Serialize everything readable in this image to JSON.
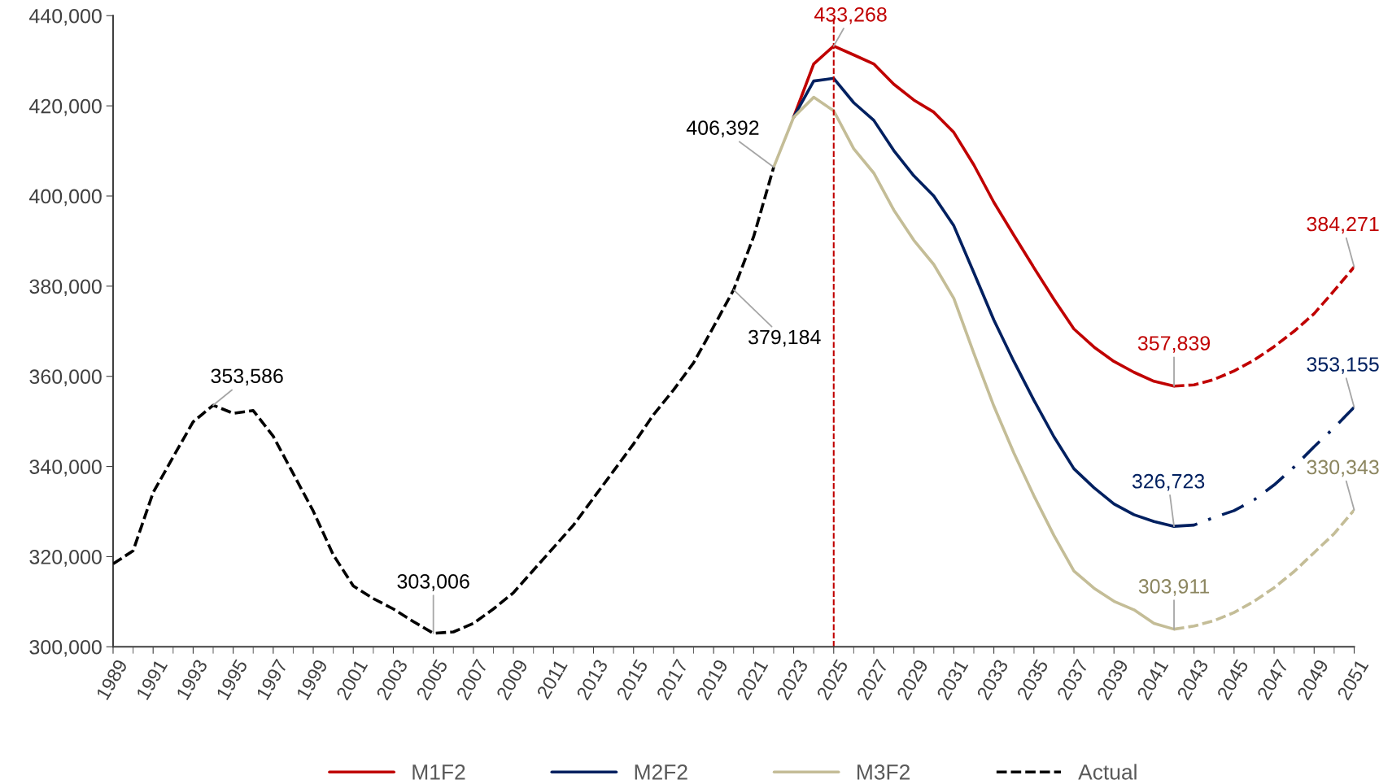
{
  "chart_data": {
    "type": "line",
    "xlim": [
      1989,
      2051
    ],
    "xticks": [
      1989,
      1991,
      1993,
      1995,
      1997,
      1999,
      2001,
      2003,
      2005,
      2007,
      2009,
      2011,
      2013,
      2015,
      2017,
      2019,
      2021,
      2023,
      2025,
      2027,
      2029,
      2031,
      2033,
      2035,
      2037,
      2039,
      2041,
      2043,
      2045,
      2047,
      2049,
      2051
    ],
    "ylim": [
      300000,
      440000
    ],
    "yticks": [
      {
        "value": 300000,
        "label": "300,000"
      },
      {
        "value": 320000,
        "label": "320,000"
      },
      {
        "value": 340000,
        "label": "340,000"
      },
      {
        "value": 360000,
        "label": "360,000"
      },
      {
        "value": 380000,
        "label": "380,000"
      },
      {
        "value": 400000,
        "label": "400,000"
      },
      {
        "value": 420000,
        "label": "420,000"
      },
      {
        "value": 440000,
        "label": "440,000"
      }
    ],
    "grid": false,
    "legend": "bottom",
    "series": [
      {
        "name": "M1F2",
        "color": "#c00000",
        "line_style": "solid",
        "x": [
          2023,
          2024,
          2025,
          2026,
          2027,
          2028,
          2029,
          2030,
          2031,
          2032,
          2033,
          2034,
          2035,
          2036,
          2037,
          2038,
          2039,
          2040,
          2041,
          2042
        ],
        "values": [
          417500,
          429300,
          433268,
          431300,
          429300,
          424800,
          421300,
          418600,
          414100,
          406900,
          398600,
          391300,
          384100,
          377100,
          370500,
          366500,
          363300,
          360900,
          358900,
          357839
        ]
      },
      {
        "name": "M2F2",
        "color": "#002060",
        "line_style": "solid",
        "x": [
          2023,
          2024,
          2025,
          2026,
          2027,
          2028,
          2029,
          2030,
          2031,
          2032,
          2033,
          2034,
          2035,
          2036,
          2037,
          2038,
          2039,
          2040,
          2041,
          2042
        ],
        "values": [
          417500,
          425500,
          426100,
          420700,
          416800,
          410100,
          404500,
          400000,
          393400,
          383000,
          372500,
          363300,
          354700,
          346600,
          339500,
          335300,
          331700,
          329300,
          327800,
          326723
        ]
      },
      {
        "name": "M3F2",
        "color": "#c4bd97",
        "line_style": "solid",
        "x": [
          2022,
          2023,
          2024,
          2025,
          2026,
          2027,
          2028,
          2029,
          2030,
          2031,
          2032,
          2033,
          2034,
          2035,
          2036,
          2037,
          2038,
          2039,
          2040,
          2041,
          2042
        ],
        "values": [
          406392,
          417500,
          421900,
          418900,
          410500,
          405100,
          396900,
          390200,
          384800,
          377300,
          365100,
          353400,
          343000,
          333500,
          324700,
          316800,
          313000,
          310100,
          308200,
          305200,
          303911
        ]
      },
      {
        "name": "Actual",
        "color": "#000000",
        "line_style": "dashed",
        "x": [
          1989,
          1990,
          1991,
          1992,
          1993,
          1994,
          1995,
          1996,
          1997,
          1998,
          1999,
          2000,
          2001,
          2002,
          2003,
          2004,
          2005,
          2006,
          2007,
          2008,
          2009,
          2010,
          2011,
          2012,
          2013,
          2014,
          2015,
          2016,
          2017,
          2018,
          2019,
          2020,
          2021,
          2022
        ],
        "values": [
          318400,
          321300,
          334200,
          342100,
          349900,
          353586,
          351800,
          352400,
          346700,
          338400,
          330100,
          320400,
          313500,
          310700,
          308400,
          305600,
          303006,
          303300,
          305200,
          308400,
          312000,
          317000,
          322000,
          327000,
          333000,
          339000,
          345000,
          351500,
          357000,
          363000,
          371000,
          379184,
          391000,
          406392
        ]
      },
      {
        "color": "#c00000",
        "line_style": "dashed",
        "x": [
          2042,
          2043,
          2044,
          2045,
          2046,
          2047,
          2048,
          2049,
          2050,
          2051
        ],
        "values": [
          357839,
          358100,
          359300,
          361200,
          363600,
          366600,
          370000,
          373900,
          379000,
          384271
        ]
      },
      {
        "color": "#002060",
        "line_style": "dashdot",
        "x": [
          2042,
          2043,
          2044,
          2045,
          2046,
          2047,
          2048,
          2049,
          2050,
          2051
        ],
        "values": [
          326723,
          327000,
          328700,
          330200,
          332600,
          335900,
          339900,
          344400,
          348600,
          353155
        ]
      },
      {
        "color": "#c4bd97",
        "line_style": "dashed",
        "x": [
          2042,
          2043,
          2044,
          2045,
          2046,
          2047,
          2048,
          2049,
          2050,
          2051
        ],
        "values": [
          303911,
          304600,
          305800,
          307600,
          310100,
          313100,
          316700,
          320900,
          325100,
          330343
        ]
      }
    ],
    "ref_lines": [
      {
        "axis": "x",
        "value": 2025,
        "color": "#c00000",
        "line_style": "dashed"
      }
    ],
    "annotations": [
      {
        "text": "353,586",
        "x": 1994,
        "y": 353586
      },
      {
        "text": "303,006",
        "x": 2005,
        "y": 303006
      },
      {
        "text": "379,184",
        "x": 2020,
        "y": 379184
      },
      {
        "text": "406,392",
        "x": 2022,
        "y": 406392
      },
      {
        "text": "433,268",
        "x": 2025,
        "y": 433268
      },
      {
        "text": "357,839",
        "x": 2042,
        "y": 357839
      },
      {
        "text": "326,723",
        "x": 2042,
        "y": 326723
      },
      {
        "text": "303,911",
        "x": 2042,
        "y": 303911
      },
      {
        "text": "384,271",
        "x": 2051,
        "y": 384271
      },
      {
        "text": "353,155",
        "x": 2051,
        "y": 353155
      },
      {
        "text": "330,343",
        "x": 2051,
        "y": 330343
      }
    ]
  }
}
